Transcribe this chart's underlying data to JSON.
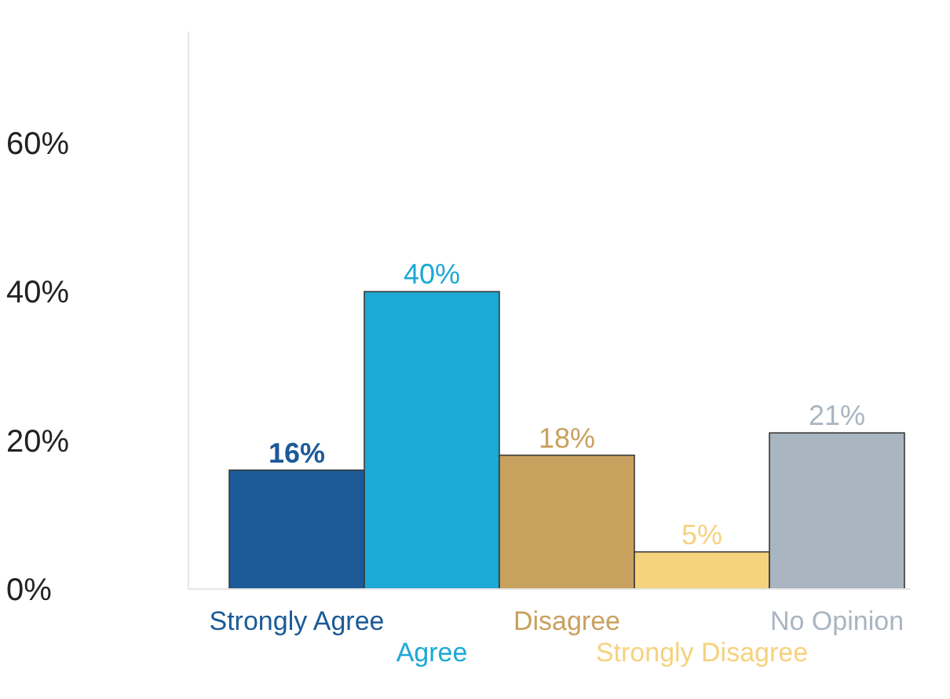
{
  "chart_data": {
    "type": "bar",
    "categories": [
      "Strongly Agree",
      "Agree",
      "Disagree",
      "Strongly Disagree",
      "No Opinion"
    ],
    "values": [
      16,
      40,
      18,
      5,
      21
    ],
    "colors": [
      "#1b5a97",
      "#1ba9d5",
      "#c9a15f",
      "#f6d27f",
      "#a9b5c1"
    ],
    "value_labels": [
      "16%",
      "40%",
      "18%",
      "5%",
      "21%"
    ],
    "ylim": [
      0,
      75
    ],
    "yticks": [
      {
        "value": 0,
        "label": "0%"
      },
      {
        "value": 20,
        "label": "20%"
      },
      {
        "value": 40,
        "label": "40%"
      },
      {
        "value": 60,
        "label": "60%"
      }
    ],
    "grid": false
  }
}
